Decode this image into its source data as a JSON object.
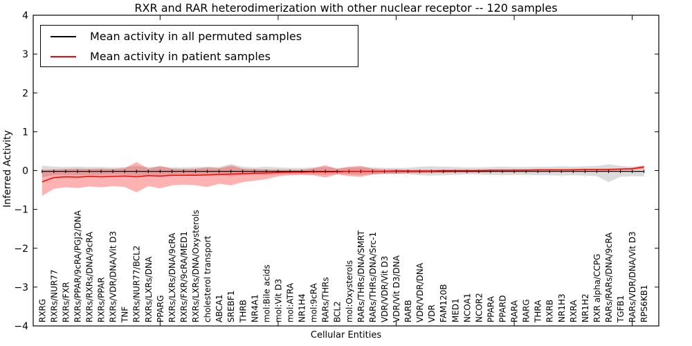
{
  "chart_data": {
    "type": "line",
    "title": "RXR and RAR heterodimerization with other nuclear receptor -- 120 samples",
    "xlabel": "Cellular Entities",
    "ylabel": "Inferred Activity",
    "ylim": [
      -4,
      4
    ],
    "yticks": [
      4,
      3,
      2,
      1,
      0,
      -1,
      -2,
      -3,
      -4
    ],
    "xtick_positions": [
      10,
      20,
      30,
      40,
      50
    ],
    "grid": false,
    "legend_position": "upper left",
    "categories": [
      "RXRG",
      "RXRs/NUR77",
      "RXRs/FXR",
      "RXRs/PPAR/9cRA/PGJ2/DNA",
      "RXRs/RXRs/DNA/9cRA",
      "RXRs/PPAR",
      "RXRs/VDR/DNA/Vit D3",
      "TNF",
      "RXRs/NUR77/BCL2",
      "RXRs/LXRs/DNA",
      "PPARG",
      "RXRs/LXRs/DNA/9cRA",
      "RXRs/FXR/9cRA/MED1",
      "RXRs/LXRs/DNA/Oxysterols",
      "cholesterol transport",
      "ABCA1",
      "SREBF1",
      "THRB",
      "NR4A1",
      "mol:Bile acids",
      "mol:Vit D3",
      "mol:ATRA",
      "NR1H4",
      "mol:9cRA",
      "RARs/THRs",
      "BCL2",
      "mol:Oxysterols",
      "RARs/THRs/DNA/SMRT",
      "RARs/THRs/DNA/Src-1",
      "VDR/VDR/Vit D3",
      "VDR/Vit D3/DNA",
      "RARB",
      "VDR/VDR/DNA",
      "VDR",
      "FAM120B",
      "MED1",
      "NCOA1",
      "NCOR2",
      "PPARA",
      "PPARD",
      "RARA",
      "RARG",
      "THRA",
      "RXRB",
      "NR1H3",
      "RXRA",
      "NR1H2",
      "RXR alpha/CCPG",
      "RARs/RARs/DNA/9cRA",
      "TGFB1",
      "RARs/VDR/DNA/Vit D3",
      "RPS6KB1"
    ],
    "series": [
      {
        "name": "Mean activity in all permuted samples",
        "color": "#000000",
        "line_width": 1.2,
        "marker": "|",
        "band_color": "rgba(0,0,0,0.14)",
        "values": [
          -0.02,
          -0.02,
          -0.02,
          -0.02,
          -0.02,
          -0.02,
          -0.02,
          -0.02,
          -0.02,
          -0.02,
          -0.02,
          -0.02,
          -0.02,
          -0.02,
          -0.02,
          -0.02,
          -0.02,
          -0.02,
          -0.02,
          -0.02,
          -0.02,
          -0.02,
          -0.02,
          -0.02,
          -0.02,
          -0.02,
          -0.02,
          -0.02,
          -0.02,
          -0.02,
          -0.02,
          -0.02,
          -0.02,
          -0.02,
          -0.02,
          -0.02,
          -0.02,
          -0.02,
          -0.02,
          -0.02,
          -0.02,
          -0.02,
          -0.02,
          -0.02,
          -0.02,
          -0.02,
          -0.02,
          -0.02,
          -0.02,
          -0.02,
          -0.02,
          -0.02
        ],
        "band_upper": [
          0.13,
          0.1,
          0.09,
          0.1,
          0.09,
          0.09,
          0.08,
          0.09,
          0.12,
          0.09,
          0.1,
          0.08,
          0.08,
          0.09,
          0.1,
          0.09,
          0.17,
          0.1,
          0.08,
          0.1,
          0.08,
          0.07,
          0.07,
          0.08,
          0.09,
          0.07,
          0.08,
          0.09,
          0.08,
          0.07,
          0.07,
          0.07,
          0.1,
          0.11,
          0.1,
          0.09,
          0.08,
          0.08,
          0.09,
          0.1,
          0.09,
          0.09,
          0.1,
          0.1,
          0.11,
          0.1,
          0.11,
          0.12,
          0.16,
          0.12,
          0.1,
          0.13
        ],
        "band_lower": [
          -0.17,
          -0.12,
          -0.11,
          -0.12,
          -0.11,
          -0.11,
          -0.1,
          -0.11,
          -0.14,
          -0.11,
          -0.12,
          -0.1,
          -0.1,
          -0.11,
          -0.12,
          -0.11,
          -0.15,
          -0.12,
          -0.1,
          -0.12,
          -0.1,
          -0.09,
          -0.09,
          -0.1,
          -0.11,
          -0.09,
          -0.1,
          -0.11,
          -0.1,
          -0.09,
          -0.09,
          -0.09,
          -0.12,
          -0.13,
          -0.12,
          -0.11,
          -0.1,
          -0.1,
          -0.11,
          -0.12,
          -0.11,
          -0.11,
          -0.12,
          -0.12,
          -0.13,
          -0.12,
          -0.13,
          -0.14,
          -0.3,
          -0.16,
          -0.14,
          -0.15
        ]
      },
      {
        "name": "Mean activity in patient samples",
        "color": "#ff0000",
        "line_width": 1.5,
        "marker": "none",
        "band_color": "rgba(255,0,0,0.30)",
        "values": [
          -0.29,
          -0.18,
          -0.16,
          -0.17,
          -0.15,
          -0.16,
          -0.15,
          -0.14,
          -0.16,
          -0.13,
          -0.14,
          -0.12,
          -0.12,
          -0.12,
          -0.11,
          -0.1,
          -0.09,
          -0.08,
          -0.07,
          -0.06,
          -0.05,
          -0.04,
          -0.04,
          -0.03,
          -0.03,
          -0.03,
          -0.02,
          -0.02,
          -0.02,
          -0.02,
          -0.01,
          -0.01,
          -0.01,
          -0.01,
          0.0,
          0.0,
          0.0,
          0.0,
          0.01,
          0.01,
          0.01,
          0.01,
          0.02,
          0.02,
          0.02,
          0.02,
          0.03,
          0.03,
          0.03,
          0.04,
          0.05,
          0.09
        ],
        "band_upper": [
          0.02,
          0.03,
          0.04,
          0.05,
          0.04,
          0.05,
          0.04,
          0.06,
          0.22,
          0.05,
          0.12,
          0.05,
          0.04,
          0.05,
          0.08,
          0.06,
          0.13,
          0.05,
          0.04,
          0.03,
          0.02,
          0.02,
          0.02,
          0.06,
          0.14,
          0.04,
          0.1,
          0.12,
          0.05,
          0.03,
          0.03,
          0.02,
          0.02,
          0.02,
          0.02,
          0.02,
          0.02,
          0.02,
          0.02,
          0.02,
          0.03,
          0.03,
          0.03,
          0.03,
          0.03,
          0.04,
          0.04,
          0.04,
          0.05,
          0.05,
          0.07,
          0.13
        ],
        "band_lower": [
          -0.65,
          -0.47,
          -0.43,
          -0.45,
          -0.41,
          -0.43,
          -0.4,
          -0.42,
          -0.56,
          -0.4,
          -0.46,
          -0.38,
          -0.36,
          -0.38,
          -0.42,
          -0.34,
          -0.38,
          -0.3,
          -0.26,
          -0.22,
          -0.15,
          -0.12,
          -0.11,
          -0.12,
          -0.18,
          -0.1,
          -0.14,
          -0.16,
          -0.1,
          -0.08,
          -0.08,
          -0.07,
          -0.07,
          -0.06,
          -0.06,
          -0.05,
          -0.05,
          -0.05,
          -0.04,
          -0.04,
          -0.04,
          -0.03,
          -0.03,
          -0.03,
          -0.02,
          -0.02,
          -0.02,
          -0.02,
          -0.01,
          0.0,
          0.01,
          0.05
        ]
      }
    ]
  }
}
